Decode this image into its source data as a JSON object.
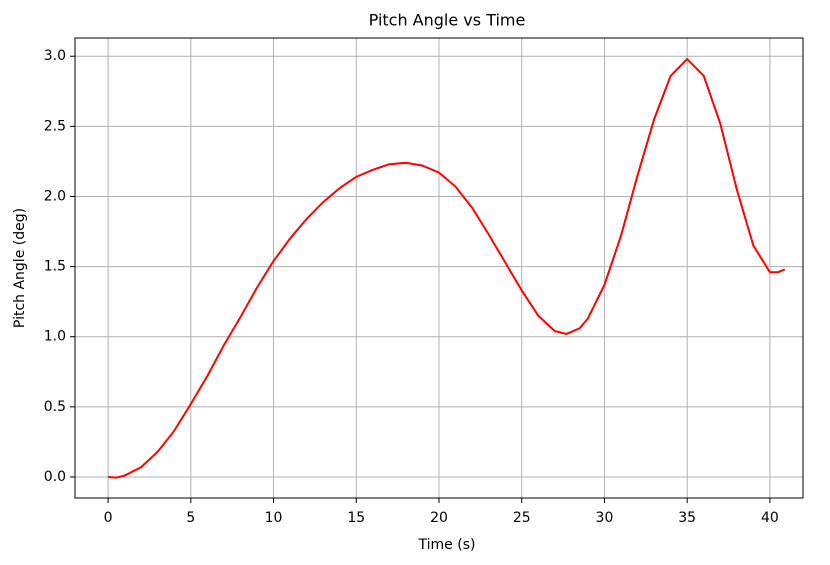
{
  "chart_data": {
    "type": "line",
    "title": "Pitch Angle vs Time",
    "x_label": "Time (s)",
    "y_label": "Pitch Angle (deg)",
    "x": [
      0,
      0.5,
      1,
      2,
      3,
      4,
      5,
      6,
      7,
      8,
      9,
      10,
      11,
      12,
      13,
      14,
      15,
      16,
      17,
      18,
      19,
      20,
      21,
      22,
      23,
      24,
      25,
      26,
      27,
      27.7,
      28.5,
      29,
      30,
      31,
      32,
      33,
      34,
      35,
      36,
      37,
      38,
      39,
      40,
      40.5,
      40.9
    ],
    "series": [
      {
        "name": "Pitch Angle",
        "color": "#ff0000",
        "values": [
          0,
          -0.005,
          0.01,
          0.07,
          0.18,
          0.33,
          0.52,
          0.72,
          0.94,
          1.14,
          1.35,
          1.54,
          1.7,
          1.84,
          1.96,
          2.06,
          2.14,
          2.19,
          2.23,
          2.24,
          2.22,
          2.17,
          2.07,
          1.92,
          1.73,
          1.53,
          1.33,
          1.15,
          1.04,
          1.02,
          1.06,
          1.13,
          1.37,
          1.72,
          2.15,
          2.55,
          2.86,
          2.98,
          2.86,
          2.52,
          2.05,
          1.65,
          1.46,
          1.46,
          1.48
        ]
      }
    ],
    "xlim": [
      -2,
      42
    ],
    "xticks": [
      0,
      5,
      10,
      15,
      20,
      25,
      30,
      35,
      40
    ],
    "ylim": [
      -0.15,
      3.13
    ],
    "yticks": [
      {
        "value": 0,
        "label": "0.0"
      },
      {
        "value": 0.5,
        "label": "0.5"
      },
      {
        "value": 1,
        "label": "1.0"
      },
      {
        "value": 1.5,
        "label": "1.5"
      },
      {
        "value": 2,
        "label": "2.0"
      },
      {
        "value": 2.5,
        "label": "2.5"
      },
      {
        "value": 3,
        "label": "3.0"
      }
    ],
    "grid": true
  }
}
